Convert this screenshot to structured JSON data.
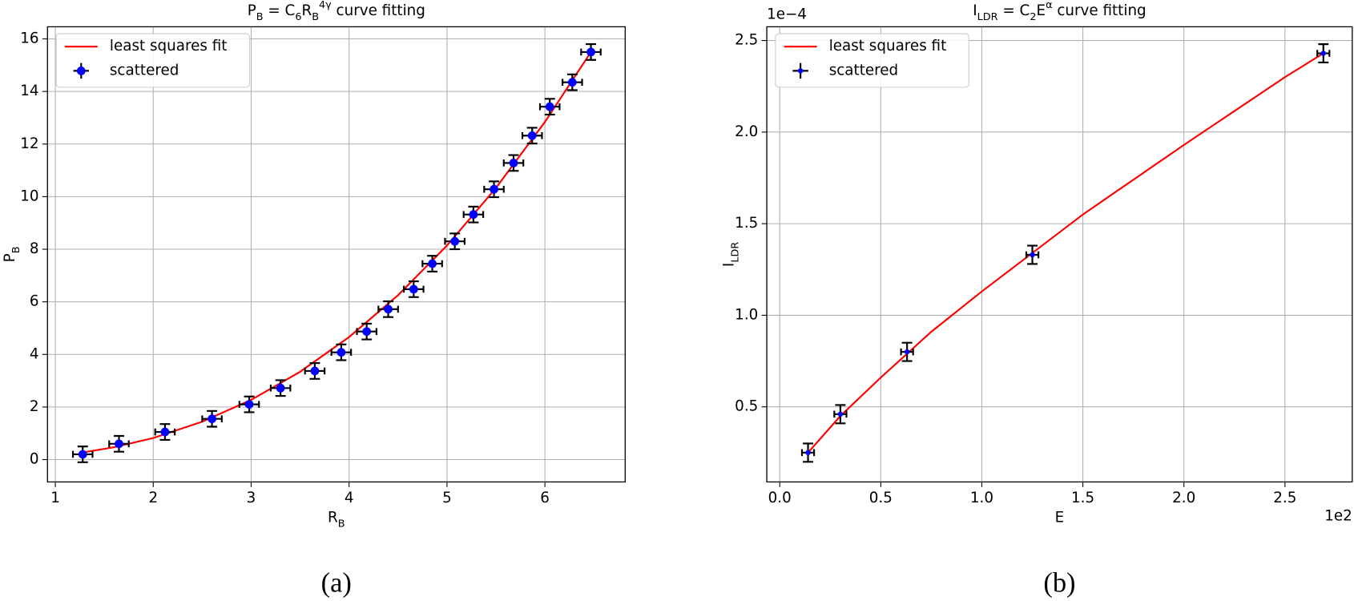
{
  "chart_data": [
    {
      "type": "errorbar",
      "title": "P_B = C_6R_B^{4γ} curve fitting",
      "xlabel": "R_B",
      "ylabel": "P_B",
      "caption": "(a)",
      "xlim": [
        0.92,
        6.82
      ],
      "ylim": [
        -0.85,
        16.46
      ],
      "xticks": [
        1,
        2,
        3,
        4,
        5,
        6
      ],
      "yticks": [
        0,
        2,
        4,
        6,
        8,
        10,
        12,
        14,
        16
      ],
      "grid": true,
      "legend": "upper left",
      "series": [
        {
          "name": "least squares fit",
          "type": "line",
          "color": "#ff0000",
          "x": [
            1.28,
            1.6,
            2,
            2.5,
            3,
            3.5,
            4,
            4.5,
            5,
            5.5,
            6,
            6.47
          ],
          "values": [
            0.27,
            0.47,
            0.82,
            1.44,
            2.27,
            3.34,
            4.66,
            6.25,
            8.14,
            10.33,
            12.84,
            15.5
          ]
        },
        {
          "name": "scattered",
          "type": "errorbar",
          "color": "#0000ff",
          "error_color": "#000000",
          "x": [
            1.28,
            1.65,
            2.12,
            2.6,
            2.98,
            3.3,
            3.65,
            3.92,
            4.18,
            4.4,
            4.66,
            4.85,
            5.08,
            5.27,
            5.48,
            5.68,
            5.87,
            6.05,
            6.28,
            6.47
          ],
          "values": [
            0.2,
            0.6,
            1.05,
            1.55,
            2.1,
            2.72,
            3.37,
            4.08,
            4.87,
            5.72,
            6.48,
            7.45,
            8.3,
            9.32,
            10.28,
            11.28,
            12.32,
            13.42,
            14.35,
            15.5
          ],
          "xerr": [
            0.1,
            0.1,
            0.1,
            0.1,
            0.1,
            0.1,
            0.1,
            0.1,
            0.1,
            0.1,
            0.1,
            0.1,
            0.1,
            0.1,
            0.1,
            0.1,
            0.1,
            0.1,
            0.1,
            0.1
          ],
          "yerr": [
            0.3,
            0.3,
            0.3,
            0.3,
            0.3,
            0.3,
            0.3,
            0.3,
            0.3,
            0.3,
            0.3,
            0.3,
            0.3,
            0.3,
            0.3,
            0.3,
            0.3,
            0.3,
            0.3,
            0.3
          ]
        }
      ]
    },
    {
      "type": "errorbar",
      "title": "I_{LDR} = C_2E^α curve fitting",
      "xlabel": "E",
      "ylabel": "I_{LDR}",
      "caption": "(b)",
      "x_offset_label": "1e2",
      "y_offset_label": "1e−4",
      "xlim": [
        -0.064,
        2.833
      ],
      "ylim": [
        0.09,
        2.575
      ],
      "xticks": [
        {
          "value": 0,
          "label": "0.0"
        },
        0.5,
        {
          "value": 1,
          "label": "1.0"
        },
        1.5,
        {
          "value": 2,
          "label": "2.0"
        },
        2.5
      ],
      "yticks": [
        0.5,
        {
          "value": 1,
          "label": "1.0"
        },
        1.5,
        {
          "value": 2,
          "label": "2.0"
        },
        2.5
      ],
      "grid": true,
      "legend": "upper left",
      "series": [
        {
          "name": "least squares fit",
          "type": "line",
          "color": "#ff0000",
          "x": [
            0.14,
            0.3,
            0.5,
            0.75,
            1,
            1.5,
            2,
            2.5,
            2.69
          ],
          "values": [
            0.25,
            0.45,
            0.66,
            0.91,
            1.13,
            1.55,
            1.93,
            2.3,
            2.43
          ]
        },
        {
          "name": "scattered",
          "type": "errorbar",
          "color": "#0000ff",
          "error_color": "#000000",
          "x": [
            0.14,
            0.3,
            0.63,
            1.25,
            2.69
          ],
          "values": [
            0.25,
            0.46,
            0.8,
            1.33,
            2.43
          ],
          "xerr": [
            0.03,
            0.03,
            0.03,
            0.03,
            0.03
          ],
          "yerr": [
            0.05,
            0.05,
            0.05,
            0.05,
            0.05
          ]
        }
      ]
    }
  ]
}
